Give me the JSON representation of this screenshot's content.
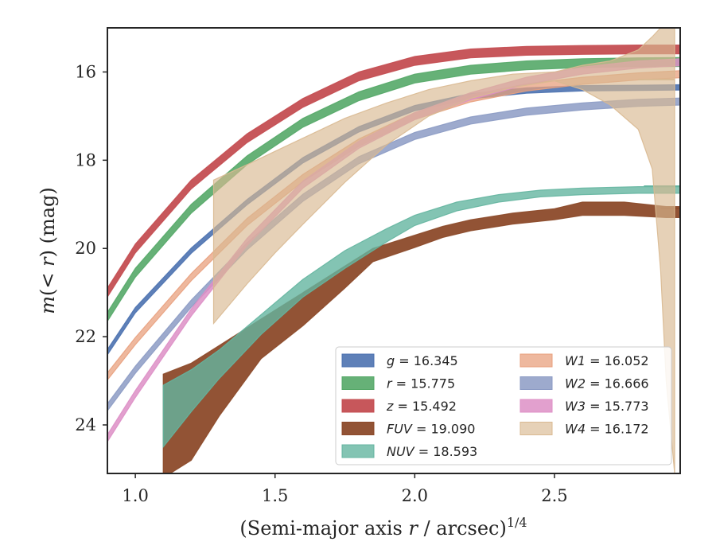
{
  "chart_data": {
    "type": "line",
    "title": "",
    "xlabel": "(Semi-major axis r / arcsec)",
    "xlabel_exponent": "1/4",
    "xlabel_italic_var": "r",
    "ylabel": "m(< r) (mag)",
    "xlim": [
      0.9,
      2.95
    ],
    "ylim": [
      25.1,
      15.0
    ],
    "y_inverted": true,
    "grid": false,
    "legend_position": "lower-right",
    "x_ticks": [
      {
        "value": 1.0,
        "label": "1.0"
      },
      {
        "value": 1.5,
        "label": "1.5"
      },
      {
        "value": 2.0,
        "label": "2.0"
      },
      {
        "value": 2.5,
        "label": "2.5"
      }
    ],
    "y_ticks": [
      {
        "value": 16,
        "label": "16"
      },
      {
        "value": 18,
        "label": "18"
      },
      {
        "value": 20,
        "label": "20"
      },
      {
        "value": 22,
        "label": "22"
      },
      {
        "value": 24,
        "label": "24"
      }
    ],
    "series": [
      {
        "name": "g = 16.345",
        "legend_var": "g",
        "legend_value": "16.345",
        "color": "#4c72b0",
        "fill_alpha": 0.9,
        "x": [
          0.9,
          1.0,
          1.2,
          1.4,
          1.6,
          1.8,
          2.0,
          2.2,
          2.4,
          2.6,
          2.8,
          2.95
        ],
        "y": [
          22.35,
          21.4,
          20.05,
          18.95,
          18.0,
          17.3,
          16.82,
          16.55,
          16.42,
          16.37,
          16.36,
          16.35
        ],
        "band": 0.06
      },
      {
        "name": "r = 15.775",
        "legend_var": "r",
        "legend_value": "15.775",
        "color": "#55a868",
        "fill_alpha": 0.9,
        "x": [
          0.9,
          1.0,
          1.2,
          1.4,
          1.6,
          1.8,
          2.0,
          2.2,
          2.4,
          2.6,
          2.8,
          2.95
        ],
        "y": [
          21.55,
          20.55,
          19.1,
          18.0,
          17.15,
          16.55,
          16.15,
          15.95,
          15.85,
          15.8,
          15.78,
          15.775
        ],
        "band": 0.1
      },
      {
        "name": "z = 15.492",
        "legend_var": "z",
        "legend_value": "15.492",
        "color": "#c44e52",
        "fill_alpha": 0.95,
        "x": [
          0.9,
          1.0,
          1.2,
          1.4,
          1.6,
          1.8,
          2.0,
          2.2,
          2.4,
          2.6,
          2.8,
          2.95
        ],
        "y": [
          21.0,
          20.0,
          18.55,
          17.5,
          16.7,
          16.1,
          15.75,
          15.58,
          15.52,
          15.5,
          15.49,
          15.49
        ],
        "band": 0.1
      },
      {
        "name": "FUV = 19.090",
        "legend_var": "FUV",
        "legend_value": "19.090",
        "color": "#8c4a2a",
        "fill_alpha": 0.95,
        "x": [
          1.1,
          1.2,
          1.3,
          1.45,
          1.6,
          1.75,
          1.85,
          2.0,
          2.1,
          2.2,
          2.35,
          2.5,
          2.6,
          2.75,
          2.9,
          2.95
        ],
        "y_upper": [
          22.85,
          22.6,
          22.2,
          21.6,
          21.0,
          20.4,
          20.0,
          19.7,
          19.5,
          19.35,
          19.2,
          19.1,
          18.95,
          18.95,
          19.05,
          19.05
        ],
        "y_lower": [
          25.2,
          24.8,
          23.8,
          22.5,
          21.75,
          20.9,
          20.3,
          19.98,
          19.75,
          19.6,
          19.45,
          19.35,
          19.25,
          19.25,
          19.3,
          19.3
        ],
        "tail_line": {
          "x": [
            2.88,
            2.95
          ],
          "y": 19.09
        }
      },
      {
        "name": "NUV = 18.593",
        "legend_var": "NUV",
        "legend_value": "18.593",
        "color": "#64b5a0",
        "fill_alpha": 0.8,
        "x": [
          1.1,
          1.2,
          1.3,
          1.45,
          1.6,
          1.75,
          1.9,
          2.0,
          2.15,
          2.3,
          2.45,
          2.6,
          2.8,
          2.95
        ],
        "y_upper": [
          23.1,
          22.75,
          22.3,
          21.5,
          20.7,
          20.05,
          19.55,
          19.25,
          18.95,
          18.78,
          18.68,
          18.63,
          18.6,
          18.6
        ],
        "y_lower": [
          24.5,
          23.7,
          22.95,
          21.95,
          21.1,
          20.45,
          19.85,
          19.48,
          19.15,
          18.95,
          18.83,
          18.78,
          18.75,
          18.75
        ],
        "tail_line": {
          "x": [
            2.82,
            2.95
          ],
          "y": 18.59
        }
      },
      {
        "name": "W1 = 16.052",
        "legend_var": "W1",
        "legend_value": "16.052",
        "color": "#e8a07e",
        "fill_alpha": 0.75,
        "x": [
          0.9,
          1.0,
          1.2,
          1.4,
          1.6,
          1.8,
          2.0,
          2.2,
          2.4,
          2.6,
          2.8,
          2.95
        ],
        "y": [
          22.9,
          22.1,
          20.65,
          19.4,
          18.4,
          17.6,
          17.0,
          16.6,
          16.35,
          16.2,
          16.1,
          16.05
        ],
        "band": 0.08
      },
      {
        "name": "W2 = 16.666",
        "legend_var": "W2",
        "legend_value": "16.666",
        "color": "#8c9bc4",
        "fill_alpha": 0.85,
        "x": [
          0.9,
          1.0,
          1.2,
          1.4,
          1.6,
          1.8,
          2.0,
          2.2,
          2.4,
          2.6,
          2.8,
          2.95
        ],
        "y": [
          23.6,
          22.75,
          21.25,
          19.95,
          18.85,
          18.0,
          17.45,
          17.1,
          16.9,
          16.78,
          16.7,
          16.67
        ],
        "band": 0.08
      },
      {
        "name": "W3 = 15.773",
        "legend_var": "W3",
        "legend_value": "15.773",
        "color": "#dd8fc6",
        "fill_alpha": 0.85,
        "x": [
          0.9,
          1.0,
          1.2,
          1.4,
          1.6,
          1.8,
          2.0,
          2.2,
          2.4,
          2.6,
          2.8,
          2.95
        ],
        "y": [
          24.3,
          23.3,
          21.45,
          19.85,
          18.55,
          17.65,
          17.0,
          16.55,
          16.2,
          15.97,
          15.83,
          15.78
        ],
        "band": 0.08
      },
      {
        "name": "W4 = 16.172",
        "legend_var": "W4",
        "legend_value": "16.172",
        "color": "#d9b991",
        "fill_alpha": 0.65,
        "x": [
          1.28,
          1.4,
          1.5,
          1.6,
          1.75,
          1.9,
          2.05,
          2.2,
          2.35,
          2.5,
          2.6,
          2.7,
          2.8,
          2.85,
          2.88,
          2.9,
          2.93
        ],
        "y_upper": [
          18.45,
          18.1,
          17.8,
          17.5,
          17.05,
          16.7,
          16.4,
          16.2,
          16.05,
          16.0,
          15.85,
          15.75,
          15.5,
          15.2,
          15.0,
          15.0,
          15.0
        ],
        "y_lower": [
          21.7,
          20.8,
          20.1,
          19.45,
          18.5,
          17.65,
          17.0,
          16.6,
          16.35,
          16.2,
          16.4,
          16.75,
          17.3,
          18.2,
          20.5,
          23.0,
          25.1
        ],
        "tail_line": {
          "x": [
            2.8,
            2.93
          ],
          "y": 16.17
        }
      }
    ]
  }
}
